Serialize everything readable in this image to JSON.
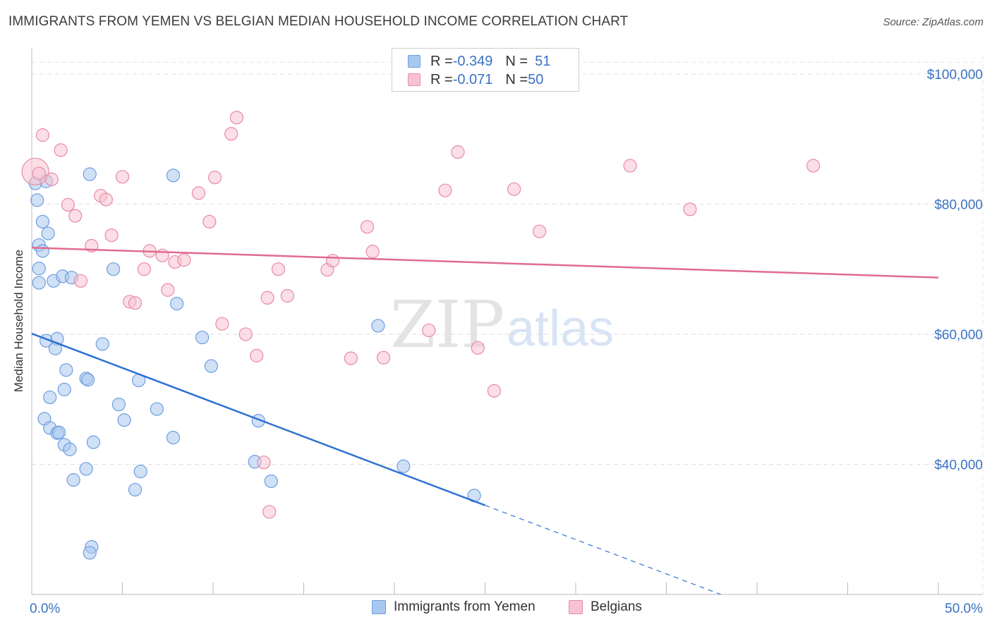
{
  "header": {
    "title": "IMMIGRANTS FROM YEMEN VS BELGIAN MEDIAN HOUSEHOLD INCOME CORRELATION CHART",
    "source": "Source: ZipAtlas.com"
  },
  "watermark": {
    "zip": "ZIP",
    "atlas": "atlas"
  },
  "legend_top": {
    "rows": [
      {
        "r_label": "R = ",
        "r_value": "-0.349",
        "n_label": "N = ",
        "n_value": "51",
        "color": "#a9c8ef",
        "border": "#6d9de0"
      },
      {
        "r_label": "R = ",
        "r_value": "-0.071",
        "n_label": "N = ",
        "n_value": "50",
        "color": "#f7c2d2",
        "border": "#e88aa7"
      }
    ]
  },
  "chart_data": {
    "type": "scatter",
    "title": "IMMIGRANTS FROM YEMEN VS BELGIAN MEDIAN HOUSEHOLD INCOME CORRELATION CHART",
    "xlabel": "",
    "ylabel": "Median Household Income",
    "xlim": [
      0,
      50
    ],
    "ylim": [
      20000,
      104000
    ],
    "x_tick_labels": [
      "0.0%",
      "50.0%"
    ],
    "y_ticks": [
      40000,
      60000,
      80000,
      100000
    ],
    "y_tick_labels": [
      "$40,000",
      "$60,000",
      "$80,000",
      "$100,000"
    ],
    "grid": true,
    "legend_position": "bottom",
    "series": [
      {
        "name": "Immigrants from Yemen",
        "color": "#a9c8ef",
        "stroke": "#6d9de0",
        "line_color": "#2e72d2",
        "points": [
          [
            0.2,
            83.2
          ],
          [
            0.3,
            80.6
          ],
          [
            0.6,
            77.3
          ],
          [
            0.8,
            83.5
          ],
          [
            0.9,
            75.5
          ],
          [
            0.4,
            73.7
          ],
          [
            0.6,
            72.8
          ],
          [
            0.4,
            70.1
          ],
          [
            0.4,
            67.9
          ],
          [
            1.2,
            68.2
          ],
          [
            1.7,
            68.9
          ],
          [
            2.2,
            68.7
          ],
          [
            3.2,
            84.6
          ],
          [
            7.8,
            84.4
          ],
          [
            4.5,
            70.0
          ],
          [
            8.0,
            64.7
          ],
          [
            0.8,
            59.0
          ],
          [
            1.4,
            59.3
          ],
          [
            1.3,
            57.8
          ],
          [
            1.9,
            54.5
          ],
          [
            3.0,
            53.2
          ],
          [
            3.1,
            53.0
          ],
          [
            1.8,
            51.5
          ],
          [
            1.0,
            50.3
          ],
          [
            3.9,
            58.5
          ],
          [
            5.9,
            52.9
          ],
          [
            9.4,
            59.5
          ],
          [
            9.9,
            55.1
          ],
          [
            4.8,
            49.2
          ],
          [
            5.1,
            46.8
          ],
          [
            6.9,
            48.5
          ],
          [
            0.7,
            47.0
          ],
          [
            1.0,
            45.6
          ],
          [
            1.4,
            44.8
          ],
          [
            1.5,
            44.9
          ],
          [
            1.8,
            43.0
          ],
          [
            2.1,
            42.3
          ],
          [
            3.4,
            43.4
          ],
          [
            7.8,
            44.1
          ],
          [
            3.0,
            39.3
          ],
          [
            6.0,
            38.9
          ],
          [
            2.3,
            37.6
          ],
          [
            5.7,
            36.1
          ],
          [
            12.5,
            46.7
          ],
          [
            12.3,
            40.4
          ],
          [
            13.2,
            37.4
          ],
          [
            20.5,
            39.7
          ],
          [
            19.1,
            61.3
          ],
          [
            24.4,
            35.2
          ],
          [
            3.3,
            27.3
          ],
          [
            3.2,
            26.4
          ]
        ],
        "trend": {
          "x_start": 0,
          "y_start": 60100,
          "x_solid_end": 25,
          "y_solid_end": 33700,
          "x_end": 38,
          "y_end": 20000
        }
      },
      {
        "name": "Belgians",
        "color": "#f7c2d2",
        "stroke": "#e88aa7",
        "line_color": "#e06b91",
        "points": [
          [
            0.2,
            85.0
          ],
          [
            0.6,
            90.6
          ],
          [
            1.1,
            83.8
          ],
          [
            1.6,
            88.3
          ],
          [
            2.0,
            79.9
          ],
          [
            2.4,
            78.2
          ],
          [
            3.3,
            73.6
          ],
          [
            2.7,
            68.2
          ],
          [
            3.8,
            81.3
          ],
          [
            4.1,
            80.7
          ],
          [
            4.4,
            75.2
          ],
          [
            5.0,
            84.2
          ],
          [
            5.4,
            65.0
          ],
          [
            5.7,
            64.8
          ],
          [
            6.2,
            70.0
          ],
          [
            6.5,
            72.8
          ],
          [
            7.2,
            72.1
          ],
          [
            7.5,
            66.8
          ],
          [
            7.9,
            71.1
          ],
          [
            8.4,
            71.4
          ],
          [
            9.2,
            81.7
          ],
          [
            9.8,
            77.3
          ],
          [
            10.1,
            84.1
          ],
          [
            10.5,
            61.6
          ],
          [
            11.0,
            90.8
          ],
          [
            11.3,
            93.3
          ],
          [
            11.8,
            60.0
          ],
          [
            12.4,
            56.7
          ],
          [
            12.8,
            40.3
          ],
          [
            13.0,
            65.6
          ],
          [
            13.6,
            70.0
          ],
          [
            14.1,
            65.9
          ],
          [
            13.1,
            32.7
          ],
          [
            16.3,
            69.9
          ],
          [
            16.6,
            71.3
          ],
          [
            17.6,
            56.3
          ],
          [
            18.5,
            76.5
          ],
          [
            18.8,
            72.7
          ],
          [
            19.4,
            56.4
          ],
          [
            21.9,
            60.6
          ],
          [
            22.8,
            82.1
          ],
          [
            23.5,
            88.0
          ],
          [
            24.6,
            57.9
          ],
          [
            25.5,
            51.3
          ],
          [
            26.6,
            82.3
          ],
          [
            28.0,
            75.8
          ],
          [
            33.0,
            85.9
          ],
          [
            36.3,
            79.2
          ],
          [
            43.1,
            85.9
          ],
          [
            0.4,
            84.7
          ]
        ],
        "trend": {
          "x_start": 0,
          "y_start": 73300,
          "x_end": 50,
          "y_end": 68700
        }
      }
    ]
  }
}
